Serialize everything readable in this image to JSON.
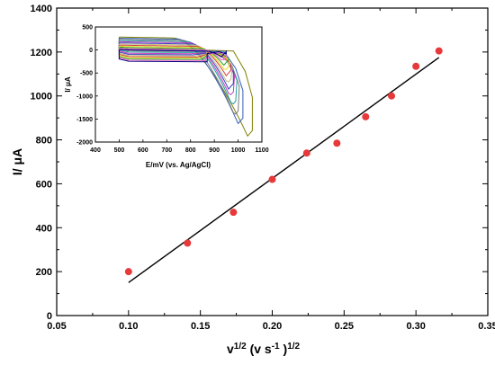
{
  "chart_data": [
    {
      "type": "scatter",
      "title": "",
      "xlabel_main": "v",
      "xlabel_sup1": "1/2",
      "xlabel_mid": " (v s",
      "xlabel_sup2": "-1",
      "xlabel_end": " )",
      "xlabel_sup3": "1/2",
      "ylabel": "I/ μA",
      "xlim": [
        0.05,
        0.35
      ],
      "ylim": [
        0,
        1400
      ],
      "xticks": [
        "0.05",
        "0.10",
        "0.15",
        "0.20",
        "0.25",
        "0.30",
        "0.35"
      ],
      "yticks": [
        "0",
        "200",
        "400",
        "600",
        "800",
        "1000",
        "1200",
        "1400"
      ],
      "grid": false,
      "series": [
        {
          "marker_color": "#e8393a",
          "points": [
            {
              "x": 0.1,
              "y": 200
            },
            {
              "x": 0.141,
              "y": 330
            },
            {
              "x": 0.173,
              "y": 470
            },
            {
              "x": 0.2,
              "y": 620
            },
            {
              "x": 0.224,
              "y": 740
            },
            {
              "x": 0.245,
              "y": 785
            },
            {
              "x": 0.265,
              "y": 905
            },
            {
              "x": 0.283,
              "y": 1000
            },
            {
              "x": 0.3,
              "y": 1135
            },
            {
              "x": 0.316,
              "y": 1205
            }
          ]
        }
      ],
      "fit_line": {
        "color": "#000000",
        "x": [
          0.1,
          0.316
        ],
        "y": [
          150,
          1175
        ]
      }
    },
    {
      "type": "line",
      "title": "",
      "xlabel": "E/mV (vs. Ag/AgCl)",
      "ylabel": "I/ μA",
      "xlim": [
        400,
        1100
      ],
      "ylim": [
        -2000,
        500
      ],
      "xticks": [
        "400",
        "500",
        "600",
        "700",
        "800",
        "900",
        "1000",
        "1100"
      ],
      "yticks": [
        "-2000",
        "-1500",
        "-1000",
        "-500",
        "0",
        "500"
      ],
      "grid": false,
      "series": [
        {
          "color": "#808000",
          "plateau": 280,
          "onset": 730,
          "peakE": 1040,
          "peakI": -1870
        },
        {
          "color": "#2f5fbf",
          "plateau": 255,
          "onset": 750,
          "peakE": 1000,
          "peakI": -1600
        },
        {
          "color": "#7a7a7a",
          "plateau": 230,
          "onset": 770,
          "peakE": 985,
          "peakI": -1420
        },
        {
          "color": "#1fa0a0",
          "plateau": 205,
          "onset": 790,
          "peakE": 975,
          "peakI": -1200
        },
        {
          "color": "#bf3fbf",
          "plateau": 180,
          "onset": 800,
          "peakE": 965,
          "peakI": -1000
        },
        {
          "color": "#3f3fbf",
          "plateau": 155,
          "onset": 810,
          "peakE": 960,
          "peakI": -850
        },
        {
          "color": "#bfbf7f",
          "plateau": 130,
          "onset": 820,
          "peakE": 955,
          "peakI": -720
        },
        {
          "color": "#d63a3a",
          "plateau": 105,
          "onset": 830,
          "peakE": 950,
          "peakI": -560
        },
        {
          "color": "#e0e020",
          "plateau": 80,
          "onset": 840,
          "peakE": 945,
          "peakI": -450
        },
        {
          "color": "#2aa02a",
          "plateau": 55,
          "onset": 850,
          "peakE": 940,
          "peakI": -330
        },
        {
          "color": "#ff66cc",
          "plateau": 30,
          "onset": 860,
          "peakE": 935,
          "peakI": -240
        },
        {
          "color": "#000080",
          "plateau": 5,
          "onset": 870,
          "peakE": 930,
          "peakI": -150
        }
      ]
    }
  ]
}
